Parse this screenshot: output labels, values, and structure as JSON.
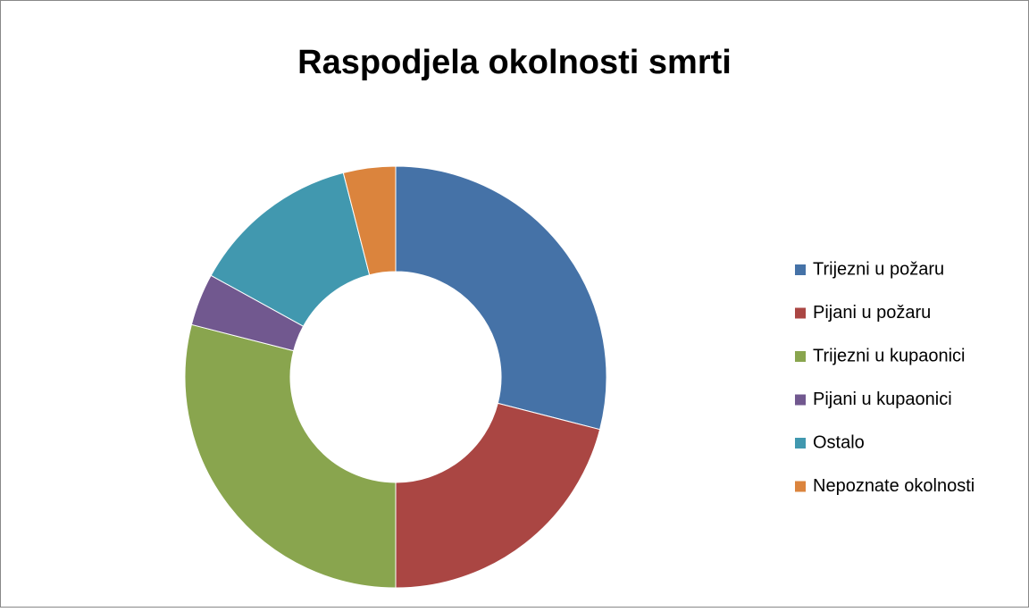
{
  "chart_data": {
    "type": "donut",
    "title": "Raspodjela okolnosti smrti",
    "categories": [
      "Trijezni u požaru",
      "Pijani u požaru",
      "Trijezni u kupaonici",
      "Pijani u kupaonici",
      "Ostalo",
      "Nepoznate okolnosti"
    ],
    "values": [
      29,
      21,
      29,
      4,
      13,
      4
    ],
    "colors": [
      "#4572a7",
      "#aa4643",
      "#89a54e",
      "#71588f",
      "#4198af",
      "#db843d"
    ],
    "legend": "right"
  }
}
